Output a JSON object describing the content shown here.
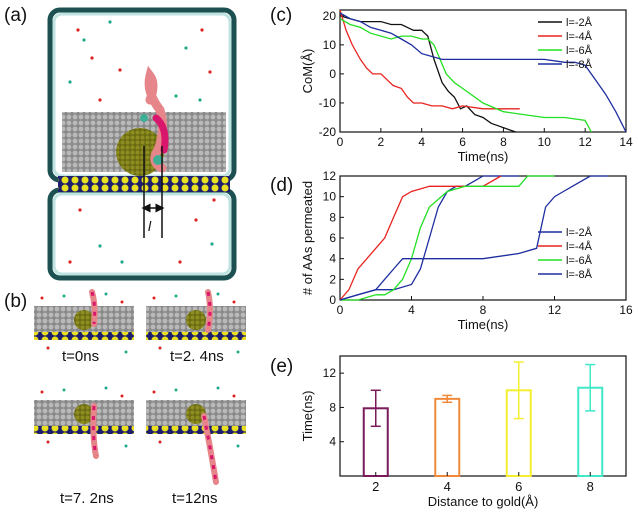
{
  "panels": {
    "a": "(a)",
    "b": "(b)",
    "c": "(c)",
    "d": "(d)",
    "e": "(e)"
  },
  "panel_a": {
    "distance_marker": "l"
  },
  "panel_b": {
    "frames": [
      "t=0ns",
      "t=2. 4ns",
      "t=7. 2ns",
      "t=12ns"
    ]
  },
  "colors": {
    "series_minus2": "#111111",
    "series_minus4": "#e8231f",
    "series_minus6": "#22e022",
    "series_minus8": "#1e2ea0",
    "membrane": "#8a8a8a",
    "gold": "#7a7a16",
    "water_box": "#bfe3e0",
    "electrode": "#e8e020",
    "bar_2": "#7a1a5a",
    "bar_4": "#f08a3a",
    "bar_6": "#f5ef30",
    "bar_8": "#40e8c8"
  },
  "chart_data": [
    {
      "id": "c",
      "type": "line",
      "xlabel": "Time(ns)",
      "ylabel": "CoM(Å)",
      "xlim": [
        0,
        14
      ],
      "ylim": [
        -20,
        22
      ],
      "xticks": [
        0,
        2,
        4,
        6,
        8,
        10,
        12,
        14
      ],
      "yticks": [
        -20,
        -10,
        0,
        10,
        20
      ],
      "legend_position": "top-right",
      "series": [
        {
          "name": "l=-2Å",
          "color": "#111111",
          "x": [
            0,
            0.5,
            1,
            1.5,
            2,
            2.5,
            3,
            3.3,
            3.6,
            4,
            4.3,
            4.6,
            5,
            5.3,
            5.6,
            5.9,
            6.2,
            6.6,
            7,
            7.4,
            7.8,
            8.2,
            8.6
          ],
          "y": [
            20,
            19,
            18,
            18,
            18,
            17,
            17,
            16,
            15,
            15,
            13,
            5,
            -3,
            -6,
            -8,
            -12,
            -11,
            -14,
            -15,
            -17,
            -18,
            -19,
            -20
          ]
        },
        {
          "name": "l=-4Å",
          "color": "#e8231f",
          "x": [
            0,
            0.3,
            0.6,
            1,
            1.3,
            1.6,
            2,
            2.3,
            2.6,
            3,
            3.3,
            3.6,
            4,
            4.5,
            5,
            5.5,
            6,
            7,
            8,
            8.8
          ],
          "y": [
            22,
            15,
            10,
            5,
            2,
            0,
            0,
            -2,
            -4,
            -5,
            -8,
            -10,
            -10,
            -11,
            -11,
            -12,
            -11,
            -12,
            -12,
            -12
          ]
        },
        {
          "name": "l=-6Å",
          "color": "#22e022",
          "x": [
            0,
            0.5,
            1,
            1.5,
            2,
            2.5,
            3,
            3.5,
            4,
            4.3,
            4.6,
            4.9,
            5.2,
            5.6,
            6,
            7,
            8,
            9,
            10,
            11,
            12,
            12.3
          ],
          "y": [
            19,
            17,
            16,
            14,
            13,
            12,
            13,
            13,
            12,
            12,
            10,
            5,
            0,
            -3,
            -5,
            -10,
            -13,
            -14,
            -15,
            -15,
            -16,
            -20
          ]
        },
        {
          "name": "l=-8Å",
          "color": "#1e2ea0",
          "x": [
            0,
            0.5,
            1,
            1.5,
            2,
            2.5,
            3,
            3.5,
            4,
            4.5,
            5,
            6,
            7,
            8,
            9,
            10,
            11,
            11.5,
            12,
            12.5,
            13,
            13.5,
            14
          ],
          "y": [
            21,
            19,
            18,
            16,
            15,
            14,
            12,
            10,
            7,
            6,
            5,
            5,
            5,
            5,
            5,
            5,
            4,
            4,
            3,
            -2,
            -7,
            -13,
            -20
          ]
        }
      ]
    },
    {
      "id": "d",
      "type": "line",
      "xlabel": "Time(ns)",
      "ylabel": "# of AAs permeated",
      "xlim": [
        0,
        16
      ],
      "ylim": [
        0,
        12
      ],
      "xticks": [
        0,
        4,
        8,
        12,
        16
      ],
      "yticks": [
        0,
        2,
        4,
        6,
        8,
        10,
        12
      ],
      "legend_position": "lower-right",
      "series": [
        {
          "name": "l=-2Å",
          "color": "#1e2ea0",
          "x": [
            0,
            1,
            2,
            3,
            4,
            4.5,
            5,
            5.5,
            6,
            6.5,
            7,
            7.5,
            8,
            9,
            10
          ],
          "y": [
            0,
            0.5,
            1,
            1,
            1.5,
            3,
            6,
            9,
            10.5,
            11,
            11,
            11.5,
            12,
            12,
            12
          ]
        },
        {
          "name": "l=-4Å",
          "color": "#e8231f",
          "x": [
            0,
            0.5,
            1,
            1.5,
            2,
            2.5,
            3,
            3.5,
            4,
            5,
            6,
            7,
            8,
            9
          ],
          "y": [
            0,
            1,
            3,
            4,
            5,
            6,
            8,
            10,
            10.5,
            11,
            11,
            11,
            11,
            12
          ]
        },
        {
          "name": "l=-6Å",
          "color": "#22e022",
          "x": [
            0,
            1,
            2,
            2.5,
            3,
            3.5,
            4,
            4.5,
            5,
            6,
            7,
            8,
            9,
            10,
            10.5,
            11,
            12
          ],
          "y": [
            0,
            0,
            0.5,
            0.5,
            1,
            2,
            4,
            7,
            9,
            10.5,
            11,
            11,
            11,
            11,
            12,
            12,
            12
          ]
        },
        {
          "name": "l=-8Å",
          "color": "#1e2ea0",
          "x": [
            0,
            1,
            2,
            2.5,
            3,
            3.5,
            4,
            6,
            8,
            10,
            11,
            11.5,
            12,
            12.5,
            13,
            14,
            15
          ],
          "y": [
            0,
            0.5,
            1,
            2,
            3,
            4,
            4,
            4,
            4,
            4.5,
            5,
            9,
            10,
            10.5,
            11,
            12,
            12
          ]
        }
      ]
    },
    {
      "id": "e",
      "type": "bar",
      "xlabel": "Distance to gold(Å)",
      "ylabel": "Time(ns)",
      "ylim": [
        0,
        14
      ],
      "yticks": [
        4,
        8,
        12
      ],
      "categories": [
        "2",
        "4",
        "6",
        "8"
      ],
      "values": [
        7.9,
        9.0,
        10.0,
        10.3
      ],
      "errors": [
        2.1,
        0.4,
        3.3,
        2.7
      ],
      "colors": [
        "#7a1a5a",
        "#f08a3a",
        "#f5ef30",
        "#40e8c8"
      ]
    }
  ]
}
